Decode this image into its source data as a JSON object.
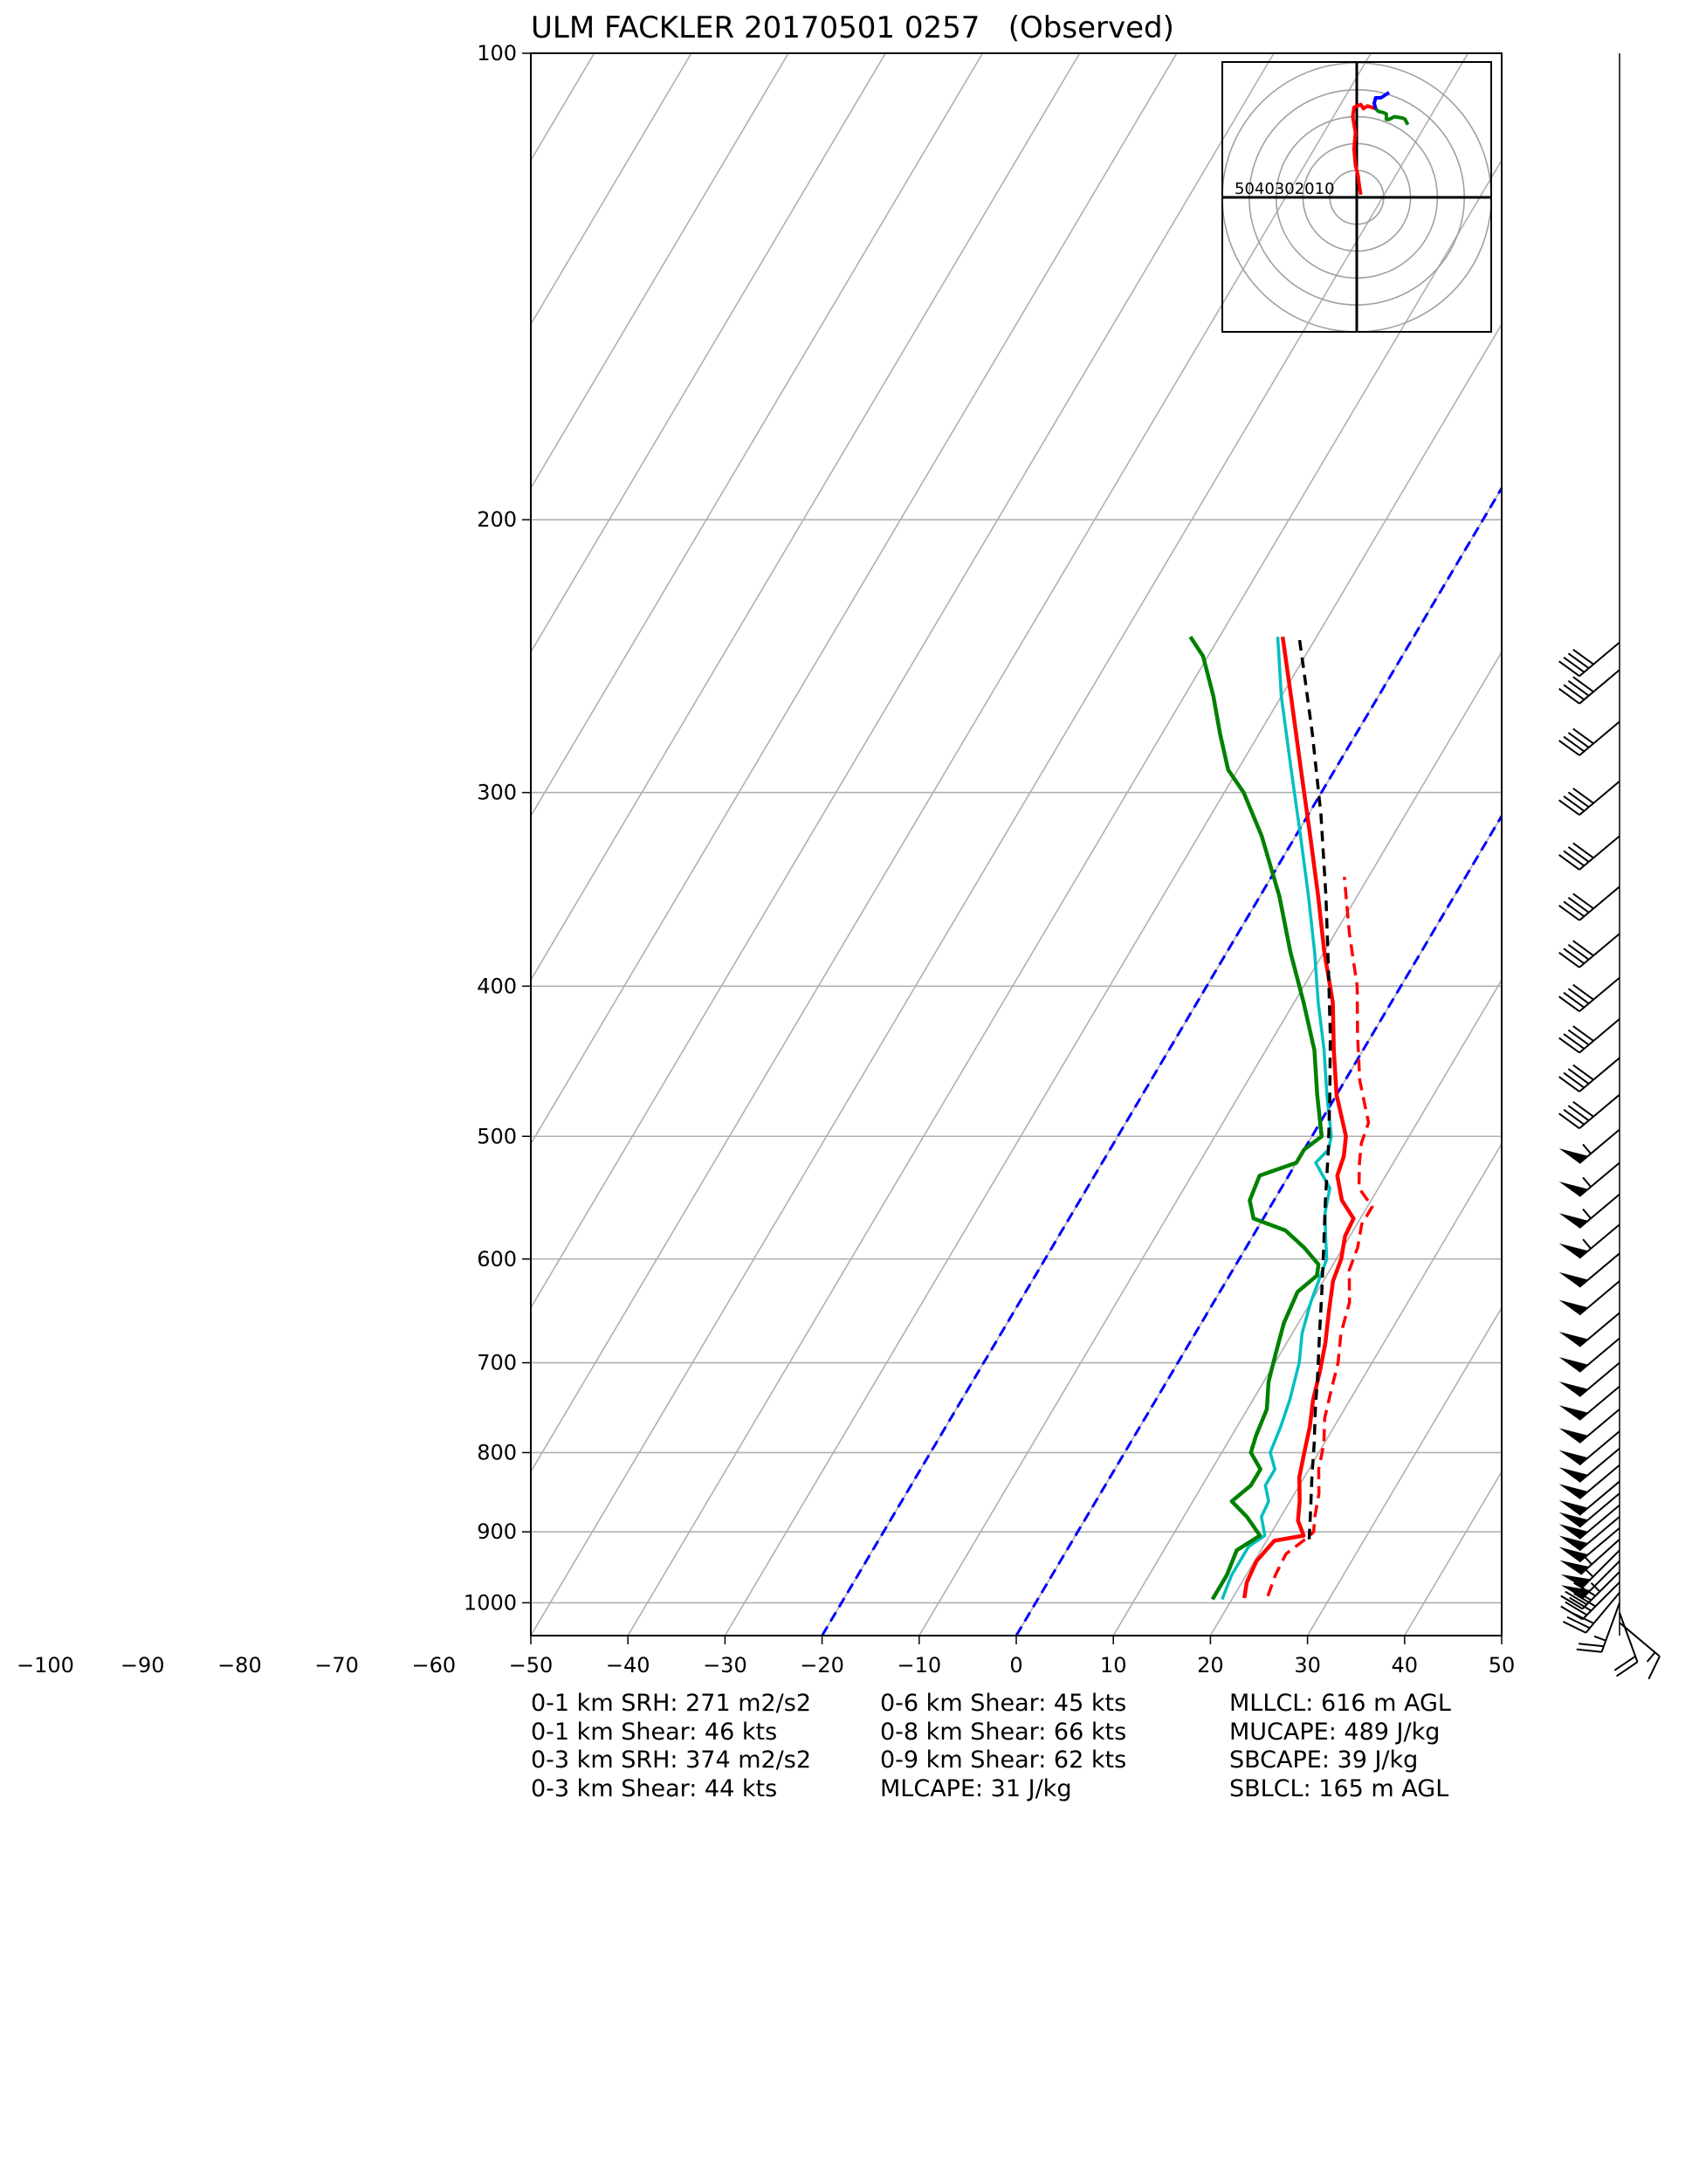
{
  "chart_data": {
    "type": "line",
    "title": "ULM FACKLER 20170501 0257   (Observed)",
    "xlabel": "",
    "ylabel": "",
    "x_ticks": [
      -100,
      -90,
      -80,
      -70,
      -60,
      -50,
      -40,
      -30,
      -20,
      -10,
      0,
      10,
      20,
      30,
      40,
      50
    ],
    "y_ticks": [
      100,
      200,
      300,
      400,
      500,
      600,
      700,
      800,
      900,
      1000
    ],
    "xlim": [
      -50,
      50
    ],
    "ylim": [
      1050,
      100
    ],
    "yscale": "log",
    "grid": true,
    "colors": {
      "temperature": "#ff0000",
      "virtual_temperature": "#ff0000",
      "wetbulb": "#00bfbf",
      "dewpoint": "#008000",
      "parcel": "#000000",
      "isotherm_highlight": "#0000ff",
      "grid": "#b0b0b0"
    },
    "series": [
      {
        "key": "temperature",
        "pressure": [
          993,
          970,
          940,
          912,
          905,
          885,
          860,
          830,
          800,
          770,
          740,
          710,
          680,
          650,
          620,
          600,
          580,
          565,
          550,
          530,
          515,
          500,
          470,
          440,
          410,
          380,
          350,
          320,
          290,
          260,
          238
        ],
        "values": [
          21.2,
          20.5,
          20.2,
          20.8,
          23.5,
          22.0,
          21.0,
          19.5,
          18.5,
          17.5,
          16.2,
          15.2,
          14.0,
          12.5,
          11.0,
          10.5,
          9.5,
          9.3,
          7.0,
          5.0,
          4.5,
          3.5,
          0.0,
          -3.0,
          -6.0,
          -10.0,
          -14.0,
          -18.5,
          -23.5,
          -29.0,
          -33.5
        ]
      },
      {
        "key": "virtual_temperature",
        "pressure": [
          990,
          960,
          930,
          908,
          900,
          880,
          850,
          820,
          790,
          760,
          730,
          700,
          670,
          640,
          610,
          590,
          570,
          555,
          540,
          520,
          505,
          490,
          460,
          430,
          400,
          370,
          340
        ],
        "values": [
          23.5,
          23.0,
          22.8,
          24.0,
          24.3,
          23.5,
          22.5,
          21.0,
          20.0,
          18.5,
          17.5,
          16.5,
          15.0,
          14.0,
          12.0,
          11.5,
          10.5,
          10.5,
          8.0,
          6.5,
          5.5,
          5.0,
          1.5,
          -1.5,
          -4.5,
          -8.5,
          -12.5
        ]
      },
      {
        "key": "wetbulb",
        "pressure": [
          995,
          960,
          920,
          905,
          880,
          860,
          840,
          820,
          800,
          770,
          740,
          700,
          670,
          640,
          600,
          580,
          560,
          540,
          520,
          510,
          500,
          470,
          440,
          410,
          380,
          350,
          320,
          290,
          260,
          238
        ],
        "values": [
          19.0,
          18.5,
          18.5,
          19.5,
          18.0,
          17.8,
          16.5,
          16.5,
          15.0,
          14.5,
          13.8,
          12.5,
          11.0,
          10.0,
          9.0,
          7.5,
          6.0,
          5.0,
          2.0,
          2.5,
          2.0,
          -1.0,
          -4.0,
          -7.5,
          -11.0,
          -15.0,
          -19.5,
          -24.5,
          -30.0,
          -34.0
        ]
      },
      {
        "key": "dewpoint",
        "pressure": [
          995,
          960,
          925,
          905,
          880,
          860,
          840,
          820,
          800,
          780,
          750,
          720,
          690,
          660,
          630,
          615,
          605,
          590,
          575,
          565,
          550,
          530,
          520,
          510,
          500,
          470,
          440,
          410,
          380,
          350,
          320,
          300,
          290,
          275,
          260,
          245,
          238
        ],
        "values": [
          18.0,
          18.0,
          17.5,
          19.0,
          16.5,
          14.0,
          15.0,
          15.0,
          13.0,
          12.5,
          12.0,
          10.5,
          9.5,
          8.5,
          8.0,
          9.0,
          8.5,
          6.0,
          3.0,
          -1.0,
          -2.5,
          -3.0,
          0.0,
          0.0,
          1.0,
          -2.0,
          -5.0,
          -9.0,
          -13.5,
          -18.0,
          -23.5,
          -28.0,
          -31.0,
          -34.0,
          -37.0,
          -40.5,
          -43.0
        ]
      },
      {
        "key": "parcel",
        "pressure": [
          910,
          870,
          830,
          790,
          750,
          710,
          670,
          630,
          590,
          550,
          510,
          470,
          430,
          390,
          350,
          310,
          275,
          250,
          238
        ],
        "values": [
          24.3,
          22.6,
          20.8,
          19.0,
          17.0,
          15.0,
          12.8,
          10.5,
          8.0,
          5.3,
          2.5,
          -0.7,
          -4.3,
          -8.5,
          -13.2,
          -18.7,
          -24.5,
          -29.3,
          -31.8
        ]
      }
    ],
    "isotherm_highlights": [
      -20,
      0
    ],
    "hodograph": {
      "range_rings": [
        10,
        20,
        30,
        40,
        50
      ],
      "ring_label_text": "5040302010",
      "segments": [
        {
          "key": "red",
          "u": [
            1.5,
            1.0,
            0.5,
            -0.5,
            -1.0,
            -0.5,
            -1.5,
            -1.0,
            1.5,
            2.5,
            4.0,
            7.0
          ],
          "v": [
            1.0,
            4.0,
            8.0,
            12.0,
            18.0,
            24.0,
            30.0,
            33.5,
            34.5,
            33.0,
            34.0,
            33.0
          ]
        },
        {
          "key": "green",
          "u": [
            7.0,
            8.0,
            10.0,
            11.0,
            11.0,
            12.0,
            14.0,
            17.0,
            18.0,
            19.0
          ],
          "v": [
            33.0,
            32.0,
            31.5,
            31.0,
            29.0,
            29.0,
            30.0,
            29.5,
            29.0,
            27.0
          ]
        },
        {
          "key": "blue",
          "u": [
            7.0,
            6.5,
            7.0,
            9.0,
            10.5,
            12.0
          ],
          "v": [
            33.0,
            35.0,
            37.0,
            37.0,
            38.0,
            39.0
          ]
        }
      ]
    },
    "wind_profile": {
      "pressure": [
        1030,
        1015,
        1000,
        985,
        970,
        955,
        940,
        925,
        910,
        895,
        880,
        865,
        850,
        835,
        815,
        795,
        775,
        750,
        725,
        700,
        675,
        650,
        620,
        595,
        570,
        545,
        520,
        495,
        470,
        445,
        420,
        395,
        370,
        345,
        320,
        295,
        270,
        250,
        240
      ],
      "speed_kt": [
        15,
        20,
        25,
        30,
        40,
        45,
        50,
        55,
        55,
        50,
        50,
        50,
        50,
        50,
        50,
        50,
        50,
        50,
        50,
        50,
        50,
        50,
        50,
        50,
        55,
        55,
        55,
        55,
        40,
        40,
        40,
        40,
        40,
        40,
        40,
        40,
        40,
        40,
        40
      ],
      "direction_deg": [
        130,
        160,
        200,
        220,
        225,
        225,
        225,
        225,
        228,
        230,
        230,
        230,
        230,
        230,
        230,
        230,
        230,
        230,
        230,
        230,
        230,
        230,
        230,
        230,
        230,
        230,
        230,
        230,
        230,
        230,
        230,
        230,
        230,
        230,
        230,
        230,
        230,
        230,
        230
      ]
    },
    "indices": {
      "col1": [
        "0-1 km SRH: 271 m2/s2",
        "0-1 km Shear: 46 kts",
        "0-3 km SRH: 374 m2/s2",
        "0-3 km Shear: 44 kts"
      ],
      "col2": [
        "0-6 km Shear: 45 kts",
        "0-8 km Shear: 66 kts",
        "0-9 km Shear: 62 kts",
        "MLCAPE: 31 J/kg"
      ],
      "col3": [
        "MLLCL: 616 m AGL",
        "MUCAPE: 489 J/kg",
        "SBCAPE: 39 J/kg",
        "SBLCL: 165 m AGL"
      ]
    }
  }
}
